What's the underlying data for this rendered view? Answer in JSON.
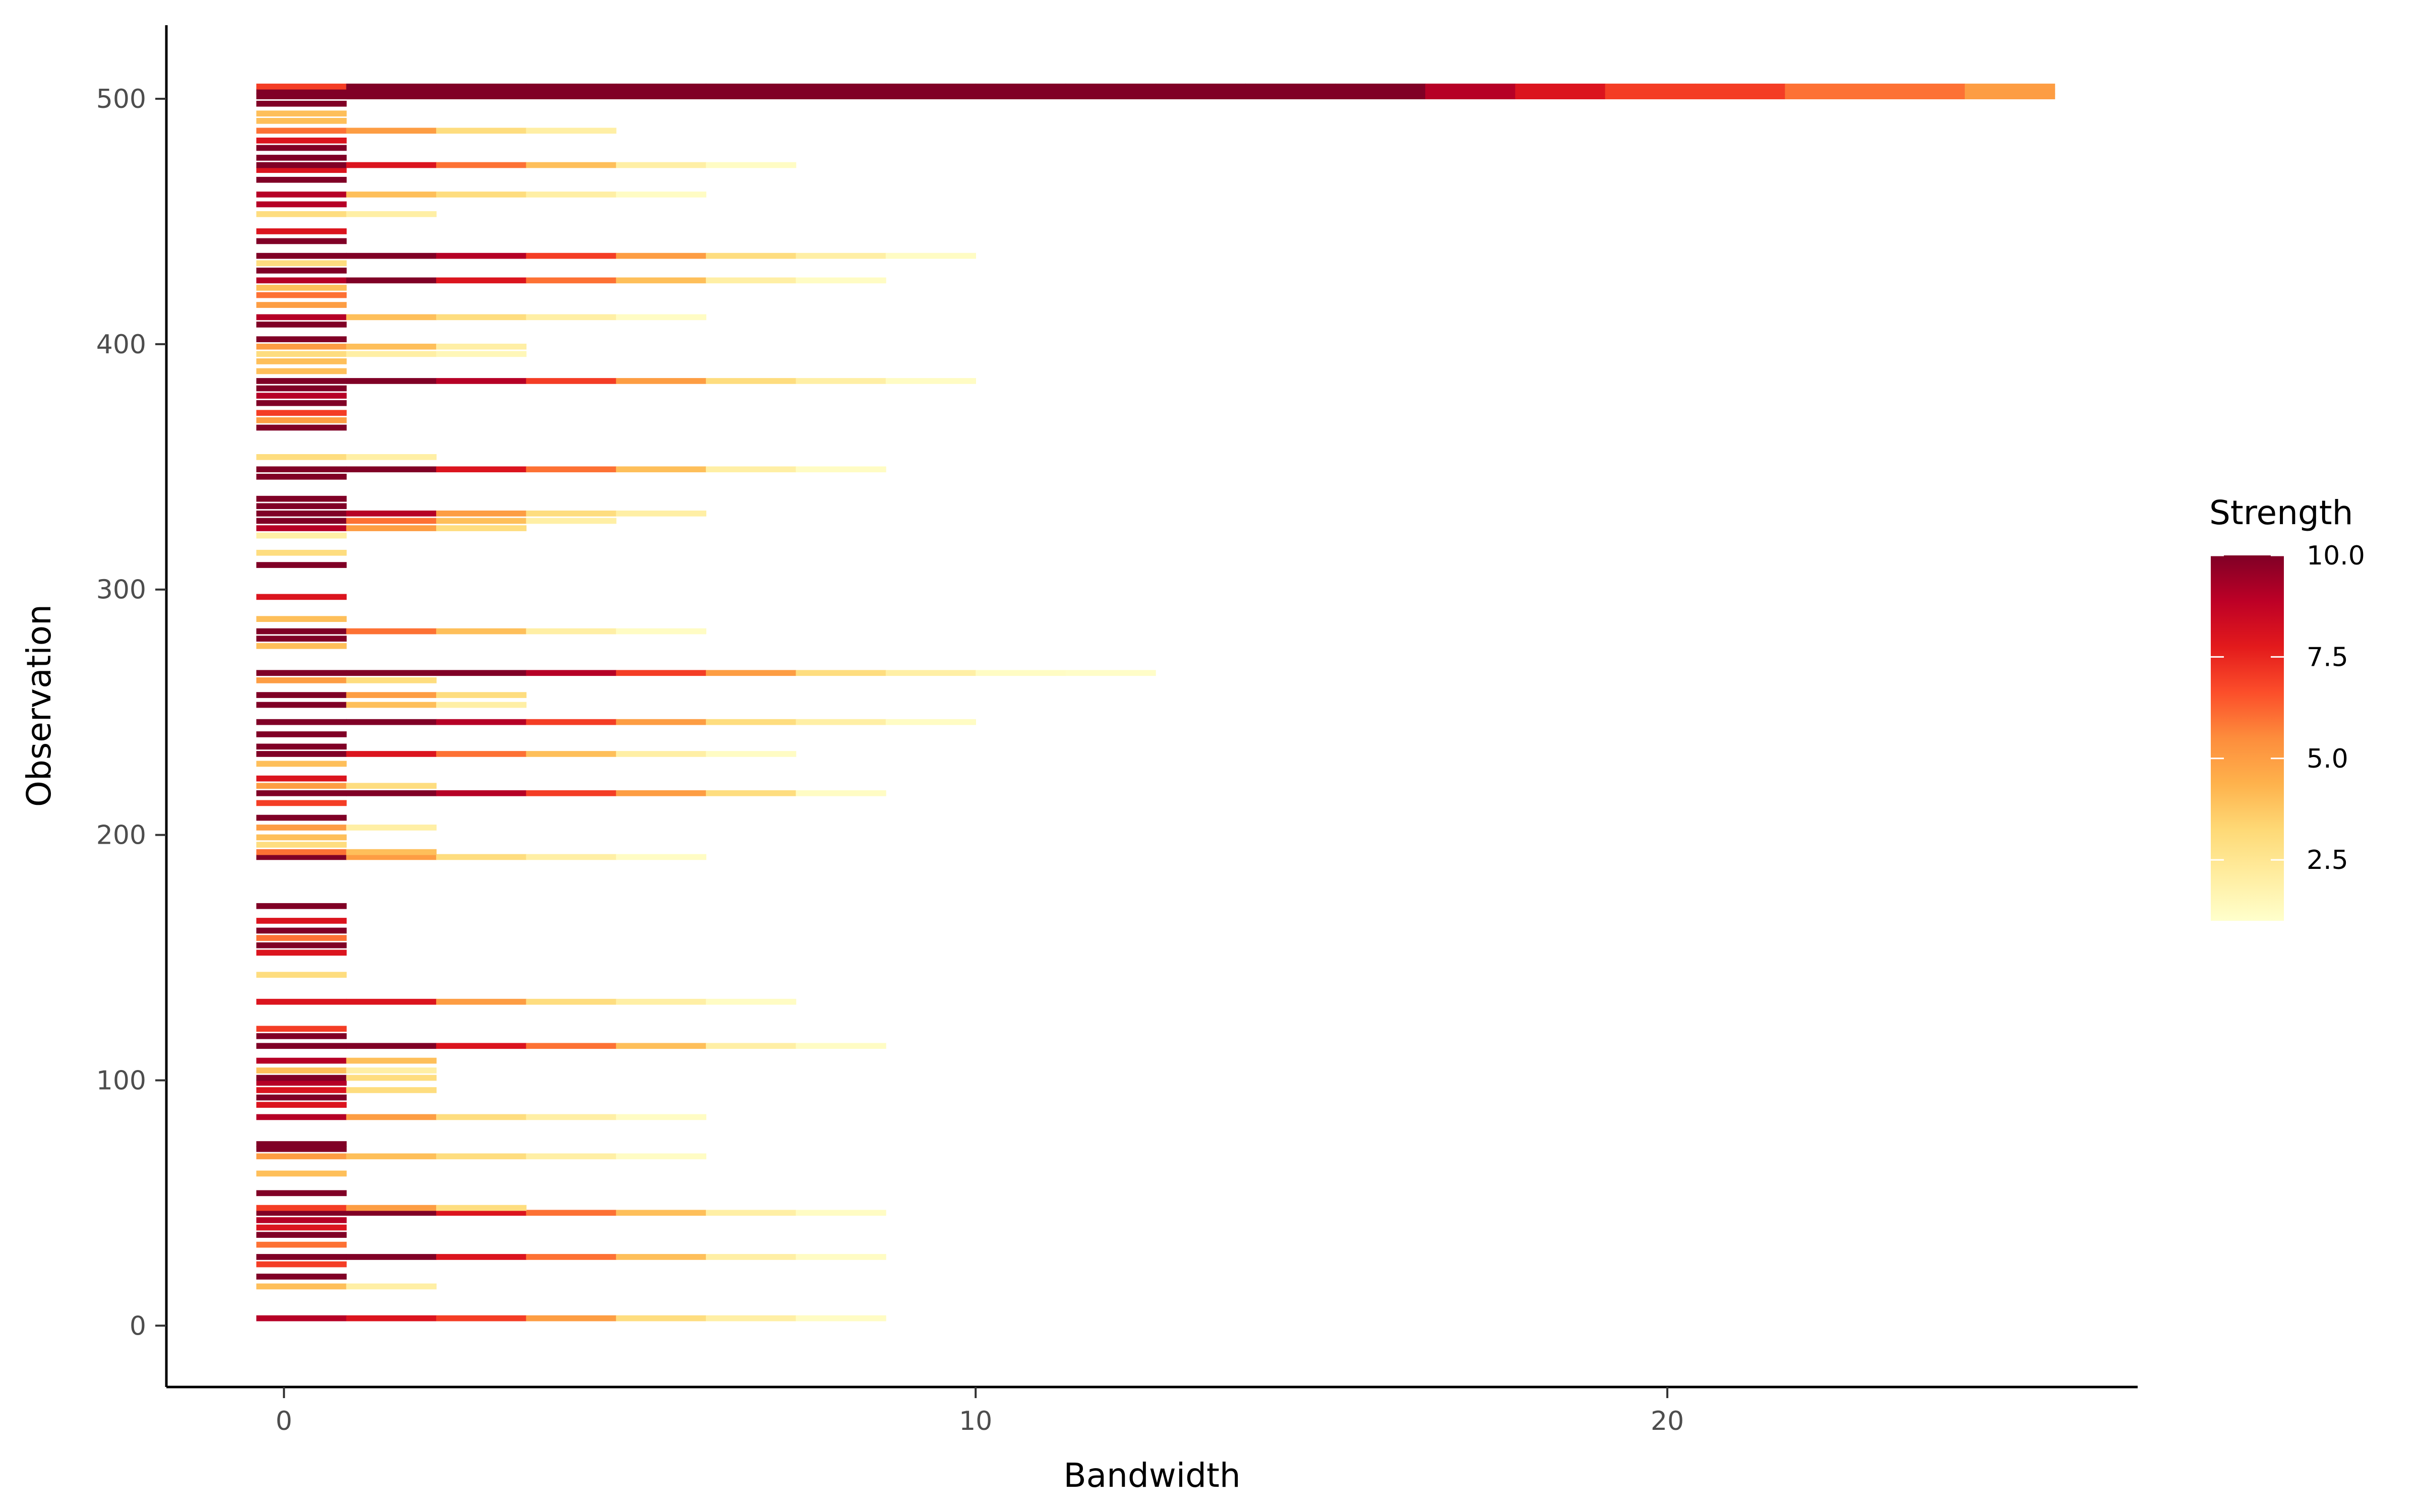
{
  "chart_data": {
    "type": "heatmap",
    "title": "",
    "xlabel": "Bandwidth",
    "ylabel": "Observation",
    "xlim": [
      -1.7,
      26.8
    ],
    "ylim": [
      -25,
      530
    ],
    "x_ticks": [
      0,
      10,
      20
    ],
    "y_ticks": [
      0,
      100,
      200,
      300,
      400,
      500
    ],
    "x_tick_labels": [
      "0",
      "10",
      "20"
    ],
    "y_tick_labels": [
      "0",
      "100",
      "200",
      "300",
      "400",
      "500"
    ],
    "grid": false,
    "legend": {
      "title": "Strength",
      "placement": "right",
      "min": 1,
      "max": 10,
      "ticks": [
        2.5,
        5.0,
        7.5,
        10.0
      ],
      "tick_labels": [
        "2.5",
        "5.0",
        "7.5",
        "10.0"
      ],
      "colors": [
        "#ffffcc",
        "#ffeda0",
        "#fed976",
        "#feb24c",
        "#fd8d3c",
        "#fc4e2a",
        "#e31a1c",
        "#bd0026",
        "#800026"
      ]
    },
    "bandwidth_breaks": [
      -0.4,
      0.9,
      2.2,
      3.5,
      4.8,
      6.1,
      7.4,
      8.7,
      10.0,
      11.3,
      12.6,
      13.9,
      15.2,
      16.5,
      17.8,
      19.1,
      20.4,
      21.7,
      23.0,
      24.3,
      25.6
    ],
    "rows": [
      {
        "obs": 3,
        "strengths": [
          9,
          8,
          7,
          5,
          3,
          2,
          1.2
        ]
      },
      {
        "obs": 16,
        "strengths": [
          4,
          2
        ]
      },
      {
        "obs": 20,
        "strengths": [
          10
        ]
      },
      {
        "obs": 25,
        "strengths": [
          7
        ]
      },
      {
        "obs": 28,
        "strengths": [
          10,
          10,
          8,
          6,
          4,
          2,
          1.2
        ]
      },
      {
        "obs": 33,
        "strengths": [
          6
        ]
      },
      {
        "obs": 37,
        "strengths": [
          10
        ]
      },
      {
        "obs": 40,
        "strengths": [
          8
        ]
      },
      {
        "obs": 43,
        "strengths": [
          9
        ]
      },
      {
        "obs": 46,
        "strengths": [
          10,
          10,
          8,
          6,
          4,
          2,
          1.2
        ]
      },
      {
        "obs": 48,
        "strengths": [
          7,
          5,
          3
        ]
      },
      {
        "obs": 54,
        "strengths": [
          10
        ]
      },
      {
        "obs": 62,
        "strengths": [
          4
        ]
      },
      {
        "obs": 69,
        "strengths": [
          5,
          4,
          3,
          2,
          1.2
        ]
      },
      {
        "obs": 72,
        "strengths": [
          10
        ]
      },
      {
        "obs": 74,
        "strengths": [
          10
        ]
      },
      {
        "obs": 85,
        "strengths": [
          9,
          5,
          3,
          2,
          1.2
        ]
      },
      {
        "obs": 90,
        "strengths": [
          8
        ]
      },
      {
        "obs": 93,
        "strengths": [
          10
        ]
      },
      {
        "obs": 96,
        "strengths": [
          8,
          3
        ]
      },
      {
        "obs": 99,
        "strengths": [
          9
        ]
      },
      {
        "obs": 101,
        "strengths": [
          10,
          3
        ]
      },
      {
        "obs": 104,
        "strengths": [
          4,
          2
        ]
      },
      {
        "obs": 108,
        "strengths": [
          9,
          4
        ]
      },
      {
        "obs": 114,
        "strengths": [
          10,
          10,
          8,
          6,
          4,
          2,
          1.2
        ]
      },
      {
        "obs": 118,
        "strengths": [
          10
        ]
      },
      {
        "obs": 121,
        "strengths": [
          7
        ]
      },
      {
        "obs": 132,
        "strengths": [
          8,
          8,
          5,
          3,
          2,
          1.2
        ]
      },
      {
        "obs": 143,
        "strengths": [
          3
        ]
      },
      {
        "obs": 152,
        "strengths": [
          8
        ]
      },
      {
        "obs": 155,
        "strengths": [
          10
        ]
      },
      {
        "obs": 158,
        "strengths": [
          6
        ]
      },
      {
        "obs": 161,
        "strengths": [
          10
        ]
      },
      {
        "obs": 165,
        "strengths": [
          8
        ]
      },
      {
        "obs": 171,
        "strengths": [
          10
        ]
      },
      {
        "obs": 191,
        "strengths": [
          10,
          5,
          3,
          2,
          1.2
        ]
      },
      {
        "obs": 193,
        "strengths": [
          6,
          4
        ]
      },
      {
        "obs": 196,
        "strengths": [
          3
        ]
      },
      {
        "obs": 199,
        "strengths": [
          4
        ]
      },
      {
        "obs": 203,
        "strengths": [
          5,
          2
        ]
      },
      {
        "obs": 207,
        "strengths": [
          10
        ]
      },
      {
        "obs": 213,
        "strengths": [
          7
        ]
      },
      {
        "obs": 217,
        "strengths": [
          10,
          10,
          9,
          7,
          5,
          3,
          1.2
        ]
      },
      {
        "obs": 220,
        "strengths": [
          5,
          3
        ]
      },
      {
        "obs": 223,
        "strengths": [
          8
        ]
      },
      {
        "obs": 229,
        "strengths": [
          4
        ]
      },
      {
        "obs": 233,
        "strengths": [
          10,
          8,
          6,
          4,
          2,
          1.2
        ]
      },
      {
        "obs": 236,
        "strengths": [
          10
        ]
      },
      {
        "obs": 241,
        "strengths": [
          10
        ]
      },
      {
        "obs": 246,
        "strengths": [
          10,
          10,
          9,
          7,
          5,
          3,
          2,
          1.2
        ]
      },
      {
        "obs": 253,
        "strengths": [
          10,
          4,
          2
        ]
      },
      {
        "obs": 257,
        "strengths": [
          10,
          5,
          3
        ]
      },
      {
        "obs": 263,
        "strengths": [
          5,
          3
        ]
      },
      {
        "obs": 266,
        "strengths": [
          10,
          10,
          10,
          9,
          7,
          5,
          3,
          2,
          1.2,
          1.1
        ]
      },
      {
        "obs": 277,
        "strengths": [
          4
        ]
      },
      {
        "obs": 280,
        "strengths": [
          10
        ]
      },
      {
        "obs": 283,
        "strengths": [
          10,
          6,
          4,
          2,
          1.2
        ]
      },
      {
        "obs": 288,
        "strengths": [
          4
        ]
      },
      {
        "obs": 297,
        "strengths": [
          8
        ]
      },
      {
        "obs": 310,
        "strengths": [
          10
        ]
      },
      {
        "obs": 315,
        "strengths": [
          3
        ]
      },
      {
        "obs": 322,
        "strengths": [
          2
        ]
      },
      {
        "obs": 325,
        "strengths": [
          9,
          5,
          3
        ]
      },
      {
        "obs": 328,
        "strengths": [
          10,
          6,
          4,
          2
        ]
      },
      {
        "obs": 331,
        "strengths": [
          10,
          9,
          5,
          3,
          2
        ]
      },
      {
        "obs": 334,
        "strengths": [
          10
        ]
      },
      {
        "obs": 337,
        "strengths": [
          10
        ]
      },
      {
        "obs": 346,
        "strengths": [
          10
        ]
      },
      {
        "obs": 349,
        "strengths": [
          10,
          10,
          8,
          6,
          4,
          2,
          1.2
        ]
      },
      {
        "obs": 354,
        "strengths": [
          3,
          2
        ]
      },
      {
        "obs": 366,
        "strengths": [
          10
        ]
      },
      {
        "obs": 369,
        "strengths": [
          5
        ]
      },
      {
        "obs": 372,
        "strengths": [
          7
        ]
      },
      {
        "obs": 376,
        "strengths": [
          10
        ]
      },
      {
        "obs": 379,
        "strengths": [
          9
        ]
      },
      {
        "obs": 382,
        "strengths": [
          10
        ]
      },
      {
        "obs": 385,
        "strengths": [
          10,
          10,
          9,
          7,
          5,
          3,
          2,
          1.2
        ]
      },
      {
        "obs": 389,
        "strengths": [
          4
        ]
      },
      {
        "obs": 393,
        "strengths": [
          4
        ]
      },
      {
        "obs": 396,
        "strengths": [
          3,
          2,
          1.5
        ]
      },
      {
        "obs": 399,
        "strengths": [
          5,
          4,
          2
        ]
      },
      {
        "obs": 402,
        "strengths": [
          10
        ]
      },
      {
        "obs": 408,
        "strengths": [
          10
        ]
      },
      {
        "obs": 411,
        "strengths": [
          9,
          4,
          3,
          2,
          1.2
        ]
      },
      {
        "obs": 416,
        "strengths": [
          5
        ]
      },
      {
        "obs": 420,
        "strengths": [
          6
        ]
      },
      {
        "obs": 423,
        "strengths": [
          4
        ]
      },
      {
        "obs": 426,
        "strengths": [
          9,
          10,
          8,
          6,
          4,
          2,
          1.2
        ]
      },
      {
        "obs": 430,
        "strengths": [
          10
        ]
      },
      {
        "obs": 433,
        "strengths": [
          3
        ]
      },
      {
        "obs": 436,
        "strengths": [
          10,
          10,
          9,
          7,
          5,
          3,
          2,
          1.2
        ]
      },
      {
        "obs": 442,
        "strengths": [
          10
        ]
      },
      {
        "obs": 446,
        "strengths": [
          8
        ]
      },
      {
        "obs": 453,
        "strengths": [
          3,
          2
        ]
      },
      {
        "obs": 457,
        "strengths": [
          9
        ]
      },
      {
        "obs": 461,
        "strengths": [
          9,
          4,
          3,
          2,
          1.2
        ]
      },
      {
        "obs": 467,
        "strengths": [
          10
        ]
      },
      {
        "obs": 471,
        "strengths": [
          8
        ]
      },
      {
        "obs": 473,
        "strengths": [
          10,
          8,
          6,
          4,
          2,
          1.2
        ]
      },
      {
        "obs": 476,
        "strengths": [
          10
        ]
      },
      {
        "obs": 480,
        "strengths": [
          10
        ]
      },
      {
        "obs": 483,
        "strengths": [
          8
        ]
      },
      {
        "obs": 487,
        "strengths": [
          6,
          5,
          3,
          2
        ]
      },
      {
        "obs": 491,
        "strengths": [
          4
        ]
      },
      {
        "obs": 494,
        "strengths": [
          4
        ]
      },
      {
        "obs": 498,
        "strengths": [
          10
        ]
      },
      {
        "obs": 501,
        "strengths": [
          10,
          10,
          10,
          10,
          10,
          10,
          10,
          10,
          10,
          10,
          10,
          10,
          10,
          9,
          8,
          7,
          7,
          6,
          6,
          5
        ]
      },
      {
        "obs": 503,
        "strengths": [
          10,
          10,
          10,
          10,
          10,
          10,
          10,
          10,
          10,
          10,
          10,
          10,
          10,
          9,
          8,
          7,
          7,
          6,
          6,
          5
        ]
      },
      {
        "obs": 505,
        "strengths": [
          7,
          10,
          10,
          10,
          10,
          10,
          10,
          10,
          10,
          10,
          10,
          10,
          10,
          9,
          8,
          7,
          7,
          6,
          6,
          5
        ]
      }
    ]
  }
}
